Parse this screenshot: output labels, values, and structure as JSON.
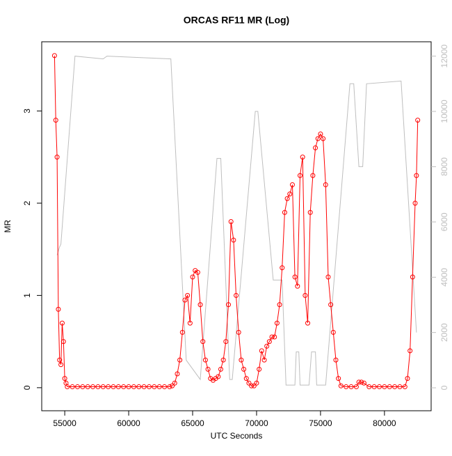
{
  "chart_data": {
    "type": "line",
    "title": "ORCAS RF11 MR (Log)",
    "x_label": "UTC Seconds",
    "y_label": "MR",
    "xlim": [
      53200,
      83650
    ],
    "ylim": [
      -0.25,
      3.75
    ],
    "y2lim": [
      -830,
      12520
    ],
    "xticks": [
      55000,
      60000,
      65000,
      70000,
      75000,
      80000
    ],
    "yticks": [
      0,
      1,
      2,
      3
    ],
    "y2ticks": [
      0,
      2000,
      4000,
      6000,
      8000,
      10000,
      12000
    ],
    "series": [
      {
        "color": "#ff0000",
        "markers": true,
        "x": [
          54200,
          54300,
          54400,
          54500,
          54600,
          54700,
          54800,
          54900,
          55000,
          55100,
          55200,
          55600,
          56000,
          56400,
          56800,
          57200,
          57600,
          58000,
          58400,
          58800,
          59200,
          59600,
          60000,
          60400,
          60800,
          61200,
          61600,
          62000,
          62400,
          62800,
          63200,
          63400,
          63600,
          63800,
          64000,
          64200,
          64400,
          64600,
          64800,
          65000,
          65200,
          65400,
          65600,
          65800,
          66000,
          66200,
          66400,
          66600,
          66800,
          67000,
          67200,
          67400,
          67600,
          67800,
          68000,
          68200,
          68400,
          68600,
          68800,
          69000,
          69200,
          69400,
          69600,
          69800,
          70000,
          70200,
          70400,
          70600,
          70800,
          71000,
          71200,
          71400,
          71600,
          71800,
          72000,
          72200,
          72400,
          72600,
          72800,
          73000,
          73200,
          73400,
          73600,
          73800,
          74000,
          74200,
          74400,
          74600,
          74800,
          75000,
          75200,
          75400,
          75600,
          75800,
          76000,
          76200,
          76400,
          76600,
          77000,
          77400,
          77800,
          78000,
          78200,
          78400,
          78800,
          79200,
          79600,
          80000,
          80400,
          80800,
          81200,
          81600,
          81800,
          82000,
          82200,
          82400,
          82500,
          82600
        ],
        "values": [
          3.6,
          2.9,
          2.5,
          0.85,
          0.3,
          0.25,
          0.7,
          0.5,
          0.1,
          0.05,
          0.01,
          0.01,
          0.01,
          0.01,
          0.01,
          0.01,
          0.01,
          0.01,
          0.01,
          0.01,
          0.01,
          0.01,
          0.01,
          0.01,
          0.01,
          0.01,
          0.01,
          0.01,
          0.01,
          0.01,
          0.01,
          0.02,
          0.05,
          0.15,
          0.3,
          0.6,
          0.95,
          1.0,
          0.7,
          1.2,
          1.27,
          1.25,
          0.9,
          0.5,
          0.3,
          0.2,
          0.1,
          0.08,
          0.1,
          0.12,
          0.2,
          0.3,
          0.5,
          0.9,
          1.8,
          1.6,
          1.0,
          0.6,
          0.3,
          0.2,
          0.1,
          0.05,
          0.02,
          0.02,
          0.05,
          0.2,
          0.4,
          0.3,
          0.45,
          0.5,
          0.55,
          0.55,
          0.7,
          0.9,
          1.3,
          1.9,
          2.05,
          2.1,
          2.2,
          1.2,
          1.1,
          2.3,
          2.5,
          1.0,
          0.7,
          1.9,
          2.3,
          2.6,
          2.7,
          2.75,
          2.7,
          2.2,
          1.2,
          0.9,
          0.6,
          0.3,
          0.1,
          0.02,
          0.01,
          0.01,
          0.01,
          0.06,
          0.06,
          0.05,
          0.01,
          0.01,
          0.01,
          0.01,
          0.01,
          0.01,
          0.01,
          0.01,
          0.1,
          0.4,
          1.2,
          2.0,
          2.3,
          2.9
        ]
      },
      {
        "color": "#bebebe",
        "axis": "y2",
        "markers": false,
        "x": [
          54400,
          54600,
          54700,
          55800,
          58000,
          58300,
          63300,
          64500,
          65600,
          66900,
          67200,
          67900,
          68100,
          69900,
          70100,
          71300,
          72000,
          72300,
          73000,
          73100,
          73300,
          73400,
          74100,
          74300,
          74600,
          74700,
          75400,
          77300,
          77600,
          78000,
          78300,
          78600,
          81300,
          82500
        ],
        "values": [
          4800,
          5100,
          5200,
          12000,
          11900,
          12000,
          11900,
          1000,
          300,
          8300,
          8300,
          300,
          300,
          10000,
          10000,
          3900,
          3900,
          100,
          100,
          1300,
          1300,
          100,
          100,
          1300,
          1300,
          100,
          100,
          11000,
          11000,
          8000,
          8000,
          11000,
          11100,
          2000
        ]
      }
    ]
  }
}
